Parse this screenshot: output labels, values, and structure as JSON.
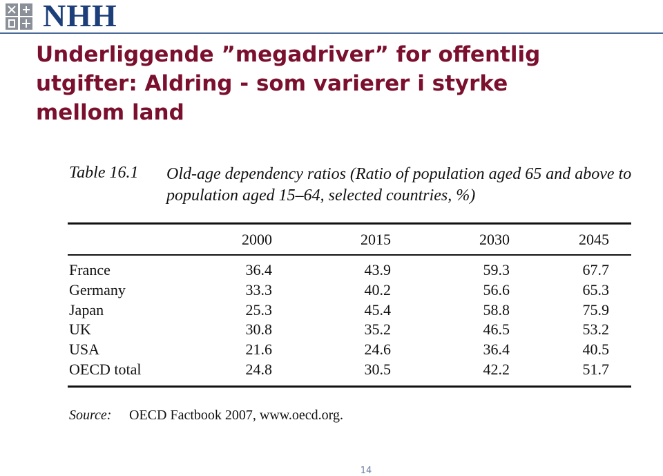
{
  "header": {
    "logo": "NHH",
    "title": "Underliggende ”megadriver” for offentlig utgifter: Aldring - som varierer i styrke mellom land"
  },
  "table": {
    "label": "Table 16.1",
    "caption": "Old-age dependency ratios (Ratio of population aged 65 and above to population aged 15–64, selected countries, %)",
    "columns": [
      "2000",
      "2015",
      "2030",
      "2045"
    ],
    "rows": [
      {
        "name": "France",
        "values": [
          36.4,
          43.9,
          59.3,
          67.7
        ]
      },
      {
        "name": "Germany",
        "values": [
          33.3,
          40.2,
          56.6,
          65.3
        ]
      },
      {
        "name": "Japan",
        "values": [
          25.3,
          45.4,
          58.8,
          75.9
        ]
      },
      {
        "name": "UK",
        "values": [
          30.8,
          35.2,
          46.5,
          53.2
        ]
      },
      {
        "name": "USA",
        "values": [
          21.6,
          24.6,
          36.4,
          40.5
        ]
      },
      {
        "name": "OECD total",
        "values": [
          24.8,
          30.5,
          42.2,
          51.7
        ]
      }
    ],
    "source_label": "Source:",
    "source": "OECD Factbook 2007, www.oecd.org."
  },
  "footer": {
    "page": "14"
  }
}
